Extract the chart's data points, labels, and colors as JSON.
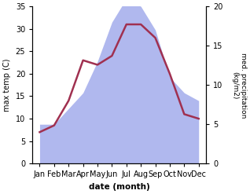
{
  "months": [
    "Jan",
    "Feb",
    "Mar",
    "Apr",
    "May",
    "Jun",
    "Jul",
    "Aug",
    "Sep",
    "Oct",
    "Nov",
    "Dec"
  ],
  "month_x": [
    1,
    2,
    3,
    4,
    5,
    6,
    7,
    8,
    9,
    10,
    11,
    12
  ],
  "temperature": [
    7.0,
    8.5,
    14.0,
    23.0,
    22.0,
    24.0,
    31.0,
    31.0,
    28.0,
    20.0,
    11.0,
    10.0
  ],
  "precipitation": [
    5.0,
    5.0,
    7.0,
    9.0,
    13.0,
    18.0,
    21.0,
    20.0,
    17.0,
    11.0,
    9.0,
    8.0
  ],
  "temp_color": "#a03050",
  "precip_fill_color": "#b0b8ee",
  "ylim_temp": [
    0,
    35
  ],
  "ylim_precip": [
    0,
    20
  ],
  "yticks_temp": [
    0,
    5,
    10,
    15,
    20,
    25,
    30,
    35
  ],
  "yticks_precip": [
    0,
    5,
    10,
    15,
    20
  ],
  "ylabel_left": "max temp (C)",
  "ylabel_right": "med. precipitation\n(kg/m2)",
  "xlabel": "date (month)",
  "temp_linewidth": 1.8,
  "xlim": [
    0.5,
    12.5
  ],
  "background_color": "#ffffff"
}
